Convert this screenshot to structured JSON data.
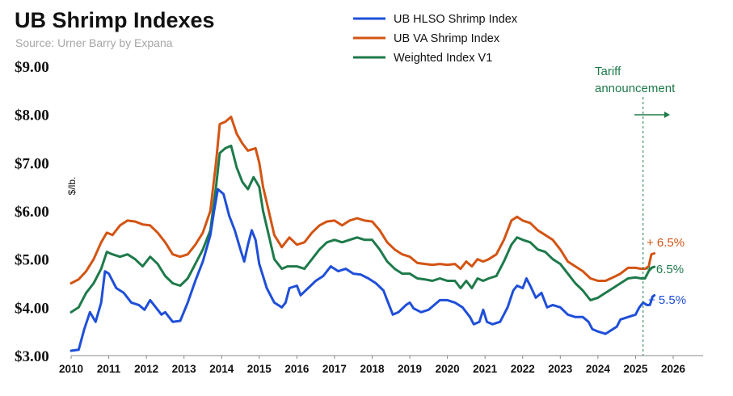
{
  "chart_data": {
    "type": "line",
    "title": "UB Shrimp Indexes",
    "subtitle": "Source: Urner Barry by Expana",
    "ylabel": "$/lb.",
    "xlabel": "",
    "ylim": [
      3.0,
      9.0
    ],
    "xlim": [
      2010,
      2026.5
    ],
    "y_ticks": [
      "$3.00",
      "$4.00",
      "$5.00",
      "$6.00",
      "$7.00",
      "$8.00",
      "$9.00"
    ],
    "x_ticks": [
      "2010",
      "2011",
      "2012",
      "2013",
      "2014",
      "2015",
      "2016",
      "2017",
      "2018",
      "2019",
      "2020",
      "2021",
      "2022",
      "2023",
      "2024",
      "2025",
      "2026"
    ],
    "grid": false,
    "legend_position": "top-center",
    "annotation": {
      "text_line1": "Tariff",
      "text_line2": "announcement",
      "x": 2025.2
    },
    "series": [
      {
        "name": "UB HLSO Shrimp Index",
        "color": "#1f4fd8",
        "end_label": "+ 5.5%",
        "points": [
          [
            2010.0,
            3.1
          ],
          [
            2010.2,
            3.12
          ],
          [
            2010.35,
            3.55
          ],
          [
            2010.5,
            3.9
          ],
          [
            2010.65,
            3.7
          ],
          [
            2010.8,
            4.1
          ],
          [
            2010.9,
            4.75
          ],
          [
            2011.0,
            4.7
          ],
          [
            2011.2,
            4.4
          ],
          [
            2011.4,
            4.3
          ],
          [
            2011.6,
            4.1
          ],
          [
            2011.8,
            4.05
          ],
          [
            2011.95,
            3.95
          ],
          [
            2012.1,
            4.15
          ],
          [
            2012.25,
            4.0
          ],
          [
            2012.4,
            3.85
          ],
          [
            2012.5,
            3.9
          ],
          [
            2012.7,
            3.7
          ],
          [
            2012.9,
            3.72
          ],
          [
            2013.1,
            4.1
          ],
          [
            2013.3,
            4.55
          ],
          [
            2013.5,
            4.95
          ],
          [
            2013.7,
            5.5
          ],
          [
            2013.8,
            6.0
          ],
          [
            2013.9,
            6.45
          ],
          [
            2014.05,
            6.35
          ],
          [
            2014.2,
            5.9
          ],
          [
            2014.35,
            5.6
          ],
          [
            2014.5,
            5.2
          ],
          [
            2014.6,
            4.95
          ],
          [
            2014.7,
            5.3
          ],
          [
            2014.8,
            5.6
          ],
          [
            2014.9,
            5.4
          ],
          [
            2015.0,
            4.9
          ],
          [
            2015.2,
            4.4
          ],
          [
            2015.4,
            4.1
          ],
          [
            2015.6,
            4.0
          ],
          [
            2015.7,
            4.1
          ],
          [
            2015.8,
            4.4
          ],
          [
            2016.0,
            4.45
          ],
          [
            2016.1,
            4.25
          ],
          [
            2016.3,
            4.4
          ],
          [
            2016.5,
            4.55
          ],
          [
            2016.7,
            4.65
          ],
          [
            2016.9,
            4.85
          ],
          [
            2017.1,
            4.75
          ],
          [
            2017.3,
            4.8
          ],
          [
            2017.5,
            4.7
          ],
          [
            2017.7,
            4.68
          ],
          [
            2017.9,
            4.6
          ],
          [
            2018.1,
            4.5
          ],
          [
            2018.3,
            4.35
          ],
          [
            2018.4,
            4.15
          ],
          [
            2018.55,
            3.85
          ],
          [
            2018.7,
            3.9
          ],
          [
            2018.9,
            4.05
          ],
          [
            2019.0,
            4.1
          ],
          [
            2019.1,
            3.98
          ],
          [
            2019.3,
            3.9
          ],
          [
            2019.5,
            3.95
          ],
          [
            2019.65,
            4.05
          ],
          [
            2019.8,
            4.15
          ],
          [
            2020.0,
            4.15
          ],
          [
            2020.2,
            4.1
          ],
          [
            2020.4,
            4.0
          ],
          [
            2020.6,
            3.8
          ],
          [
            2020.7,
            3.65
          ],
          [
            2020.85,
            3.7
          ],
          [
            2020.95,
            3.95
          ],
          [
            2021.05,
            3.7
          ],
          [
            2021.2,
            3.65
          ],
          [
            2021.4,
            3.7
          ],
          [
            2021.6,
            4.0
          ],
          [
            2021.75,
            4.35
          ],
          [
            2021.85,
            4.45
          ],
          [
            2022.0,
            4.4
          ],
          [
            2022.1,
            4.6
          ],
          [
            2022.2,
            4.45
          ],
          [
            2022.35,
            4.2
          ],
          [
            2022.5,
            4.3
          ],
          [
            2022.65,
            4.0
          ],
          [
            2022.8,
            4.05
          ],
          [
            2023.0,
            4.0
          ],
          [
            2023.2,
            3.85
          ],
          [
            2023.4,
            3.8
          ],
          [
            2023.6,
            3.8
          ],
          [
            2023.75,
            3.7
          ],
          [
            2023.85,
            3.55
          ],
          [
            2024.0,
            3.5
          ],
          [
            2024.2,
            3.45
          ],
          [
            2024.4,
            3.55
          ],
          [
            2024.5,
            3.6
          ],
          [
            2024.6,
            3.75
          ],
          [
            2024.8,
            3.8
          ],
          [
            2025.0,
            3.85
          ],
          [
            2025.1,
            4.0
          ],
          [
            2025.2,
            4.1
          ],
          [
            2025.3,
            4.05
          ],
          [
            2025.38,
            4.05
          ],
          [
            2025.45,
            4.22
          ],
          [
            2025.5,
            4.25
          ]
        ]
      },
      {
        "name": "UB VA Shrimp Index",
        "color": "#d35413",
        "end_label": "+ 6.5%",
        "points": [
          [
            2010.0,
            4.5
          ],
          [
            2010.2,
            4.58
          ],
          [
            2010.4,
            4.75
          ],
          [
            2010.6,
            5.0
          ],
          [
            2010.8,
            5.35
          ],
          [
            2010.95,
            5.55
          ],
          [
            2011.1,
            5.5
          ],
          [
            2011.3,
            5.7
          ],
          [
            2011.5,
            5.8
          ],
          [
            2011.7,
            5.78
          ],
          [
            2011.9,
            5.72
          ],
          [
            2012.1,
            5.7
          ],
          [
            2012.3,
            5.55
          ],
          [
            2012.5,
            5.35
          ],
          [
            2012.7,
            5.1
          ],
          [
            2012.9,
            5.05
          ],
          [
            2013.1,
            5.1
          ],
          [
            2013.3,
            5.3
          ],
          [
            2013.5,
            5.55
          ],
          [
            2013.7,
            6.0
          ],
          [
            2013.85,
            7.0
          ],
          [
            2013.95,
            7.8
          ],
          [
            2014.1,
            7.85
          ],
          [
            2014.25,
            7.95
          ],
          [
            2014.4,
            7.6
          ],
          [
            2014.55,
            7.4
          ],
          [
            2014.7,
            7.25
          ],
          [
            2014.9,
            7.3
          ],
          [
            2015.0,
            7.0
          ],
          [
            2015.1,
            6.5
          ],
          [
            2015.25,
            6.0
          ],
          [
            2015.4,
            5.5
          ],
          [
            2015.6,
            5.25
          ],
          [
            2015.8,
            5.45
          ],
          [
            2016.0,
            5.3
          ],
          [
            2016.2,
            5.35
          ],
          [
            2016.4,
            5.55
          ],
          [
            2016.6,
            5.7
          ],
          [
            2016.8,
            5.78
          ],
          [
            2017.0,
            5.8
          ],
          [
            2017.2,
            5.7
          ],
          [
            2017.4,
            5.8
          ],
          [
            2017.6,
            5.85
          ],
          [
            2017.8,
            5.8
          ],
          [
            2018.0,
            5.78
          ],
          [
            2018.2,
            5.6
          ],
          [
            2018.4,
            5.35
          ],
          [
            2018.6,
            5.2
          ],
          [
            2018.8,
            5.1
          ],
          [
            2019.0,
            5.05
          ],
          [
            2019.2,
            4.92
          ],
          [
            2019.4,
            4.9
          ],
          [
            2019.6,
            4.88
          ],
          [
            2019.8,
            4.9
          ],
          [
            2020.0,
            4.88
          ],
          [
            2020.2,
            4.9
          ],
          [
            2020.35,
            4.8
          ],
          [
            2020.5,
            4.95
          ],
          [
            2020.65,
            4.85
          ],
          [
            2020.8,
            5.0
          ],
          [
            2020.95,
            4.95
          ],
          [
            2021.1,
            5.0
          ],
          [
            2021.3,
            5.1
          ],
          [
            2021.5,
            5.4
          ],
          [
            2021.7,
            5.8
          ],
          [
            2021.85,
            5.88
          ],
          [
            2022.0,
            5.8
          ],
          [
            2022.2,
            5.75
          ],
          [
            2022.4,
            5.6
          ],
          [
            2022.6,
            5.5
          ],
          [
            2022.8,
            5.4
          ],
          [
            2023.0,
            5.2
          ],
          [
            2023.2,
            4.95
          ],
          [
            2023.4,
            4.85
          ],
          [
            2023.6,
            4.75
          ],
          [
            2023.8,
            4.6
          ],
          [
            2024.0,
            4.55
          ],
          [
            2024.2,
            4.55
          ],
          [
            2024.4,
            4.62
          ],
          [
            2024.6,
            4.7
          ],
          [
            2024.8,
            4.82
          ],
          [
            2025.0,
            4.82
          ],
          [
            2025.15,
            4.8
          ],
          [
            2025.25,
            4.8
          ],
          [
            2025.35,
            4.85
          ],
          [
            2025.42,
            5.1
          ],
          [
            2025.5,
            5.12
          ]
        ]
      },
      {
        "name": "Weighted Index V1",
        "color": "#1e7a4a",
        "end_label": "+ 6.5%",
        "points": [
          [
            2010.0,
            3.9
          ],
          [
            2010.2,
            4.0
          ],
          [
            2010.4,
            4.3
          ],
          [
            2010.6,
            4.5
          ],
          [
            2010.8,
            4.8
          ],
          [
            2010.95,
            5.15
          ],
          [
            2011.1,
            5.1
          ],
          [
            2011.3,
            5.05
          ],
          [
            2011.5,
            5.1
          ],
          [
            2011.7,
            5.0
          ],
          [
            2011.9,
            4.85
          ],
          [
            2012.1,
            5.05
          ],
          [
            2012.3,
            4.9
          ],
          [
            2012.5,
            4.65
          ],
          [
            2012.7,
            4.5
          ],
          [
            2012.9,
            4.45
          ],
          [
            2013.1,
            4.6
          ],
          [
            2013.3,
            4.9
          ],
          [
            2013.5,
            5.2
          ],
          [
            2013.7,
            5.6
          ],
          [
            2013.85,
            6.5
          ],
          [
            2013.95,
            7.2
          ],
          [
            2014.1,
            7.3
          ],
          [
            2014.25,
            7.35
          ],
          [
            2014.4,
            6.9
          ],
          [
            2014.55,
            6.6
          ],
          [
            2014.7,
            6.45
          ],
          [
            2014.85,
            6.7
          ],
          [
            2015.0,
            6.5
          ],
          [
            2015.1,
            6.0
          ],
          [
            2015.25,
            5.5
          ],
          [
            2015.4,
            5.0
          ],
          [
            2015.6,
            4.8
          ],
          [
            2015.75,
            4.85
          ],
          [
            2016.0,
            4.85
          ],
          [
            2016.2,
            4.8
          ],
          [
            2016.4,
            5.0
          ],
          [
            2016.6,
            5.2
          ],
          [
            2016.8,
            5.35
          ],
          [
            2017.0,
            5.4
          ],
          [
            2017.2,
            5.35
          ],
          [
            2017.4,
            5.4
          ],
          [
            2017.6,
            5.45
          ],
          [
            2017.8,
            5.4
          ],
          [
            2018.0,
            5.4
          ],
          [
            2018.2,
            5.2
          ],
          [
            2018.4,
            4.95
          ],
          [
            2018.6,
            4.8
          ],
          [
            2018.8,
            4.7
          ],
          [
            2019.0,
            4.7
          ],
          [
            2019.2,
            4.6
          ],
          [
            2019.4,
            4.58
          ],
          [
            2019.6,
            4.55
          ],
          [
            2019.8,
            4.6
          ],
          [
            2020.0,
            4.55
          ],
          [
            2020.2,
            4.55
          ],
          [
            2020.35,
            4.4
          ],
          [
            2020.5,
            4.55
          ],
          [
            2020.65,
            4.4
          ],
          [
            2020.8,
            4.6
          ],
          [
            2020.95,
            4.55
          ],
          [
            2021.1,
            4.6
          ],
          [
            2021.3,
            4.65
          ],
          [
            2021.5,
            4.95
          ],
          [
            2021.7,
            5.3
          ],
          [
            2021.85,
            5.45
          ],
          [
            2022.0,
            5.4
          ],
          [
            2022.2,
            5.35
          ],
          [
            2022.4,
            5.2
          ],
          [
            2022.6,
            5.15
          ],
          [
            2022.8,
            5.0
          ],
          [
            2023.0,
            4.9
          ],
          [
            2023.2,
            4.7
          ],
          [
            2023.4,
            4.5
          ],
          [
            2023.6,
            4.35
          ],
          [
            2023.8,
            4.15
          ],
          [
            2024.0,
            4.2
          ],
          [
            2024.2,
            4.3
          ],
          [
            2024.4,
            4.4
          ],
          [
            2024.6,
            4.5
          ],
          [
            2024.8,
            4.6
          ],
          [
            2025.0,
            4.62
          ],
          [
            2025.15,
            4.6
          ],
          [
            2025.25,
            4.6
          ],
          [
            2025.35,
            4.75
          ],
          [
            2025.42,
            4.82
          ],
          [
            2025.5,
            4.84
          ]
        ]
      }
    ]
  }
}
